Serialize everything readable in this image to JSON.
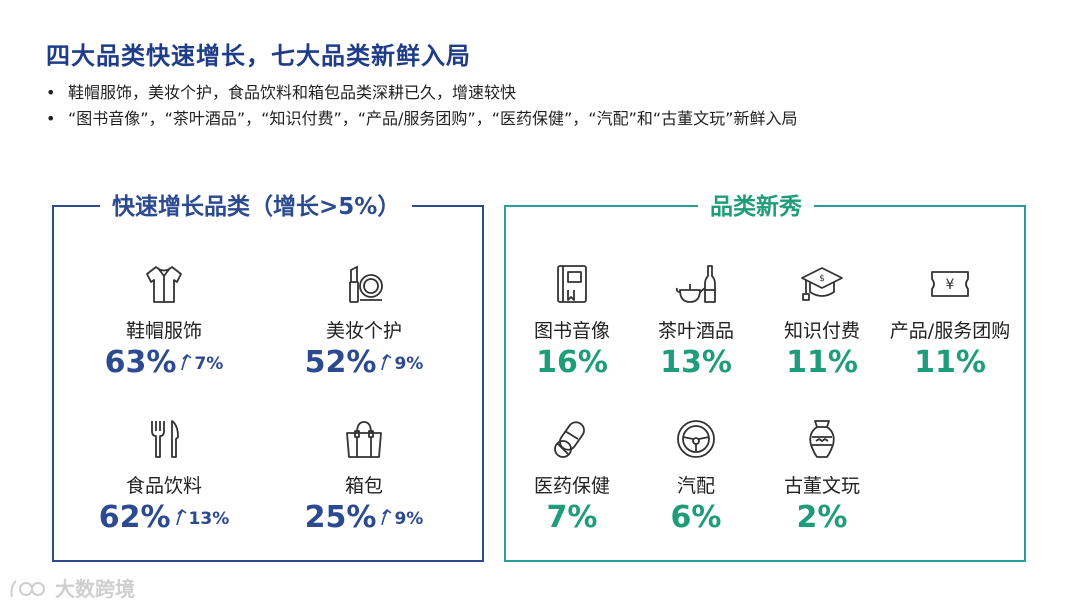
{
  "title": "四大品类快速增长，七大品类新鲜入局",
  "bullets": [
    "鞋帽服饰，美妆个护，食品饮料和箱包品类深耕已久，增速较快",
    "“图书音像”，“茶叶酒品”，“知识付费”，“产品/服务团购”，“医药保健”，“汽配”和“古董文玩”新鲜入局"
  ],
  "left_panel": {
    "title": "快速增长品类（增长>5%）",
    "items": [
      {
        "label": "鞋帽服饰",
        "pct": "63%",
        "growth": "7%",
        "icon": "shirt-icon"
      },
      {
        "label": "美妆个护",
        "pct": "52%",
        "growth": "9%",
        "icon": "cosmetics-icon"
      },
      {
        "label": "食品饮料",
        "pct": "62%",
        "growth": "13%",
        "icon": "cutlery-icon"
      },
      {
        "label": "箱包",
        "pct": "25%",
        "growth": "9%",
        "icon": "bag-icon"
      }
    ]
  },
  "right_panel": {
    "title": "品类新秀",
    "items": [
      {
        "label": "图书音像",
        "pct": "16%",
        "icon": "book-icon"
      },
      {
        "label": "茶叶酒品",
        "pct": "13%",
        "icon": "teapot-bottle-icon"
      },
      {
        "label": "知识付费",
        "pct": "11%",
        "icon": "graduation-cap-icon"
      },
      {
        "label": "产品/服务团购",
        "pct": "11%",
        "icon": "coupon-icon"
      },
      {
        "label": "医药保健",
        "pct": "7%",
        "icon": "pill-icon"
      },
      {
        "label": "汽配",
        "pct": "6%",
        "icon": "steering-wheel-icon"
      },
      {
        "label": "古董文玩",
        "pct": "2%",
        "icon": "vase-icon"
      }
    ]
  },
  "colors": {
    "left": "#2c4a8f",
    "right": "#1f9d7a",
    "title": "#1f3c88"
  },
  "watermark": "大数跨境"
}
